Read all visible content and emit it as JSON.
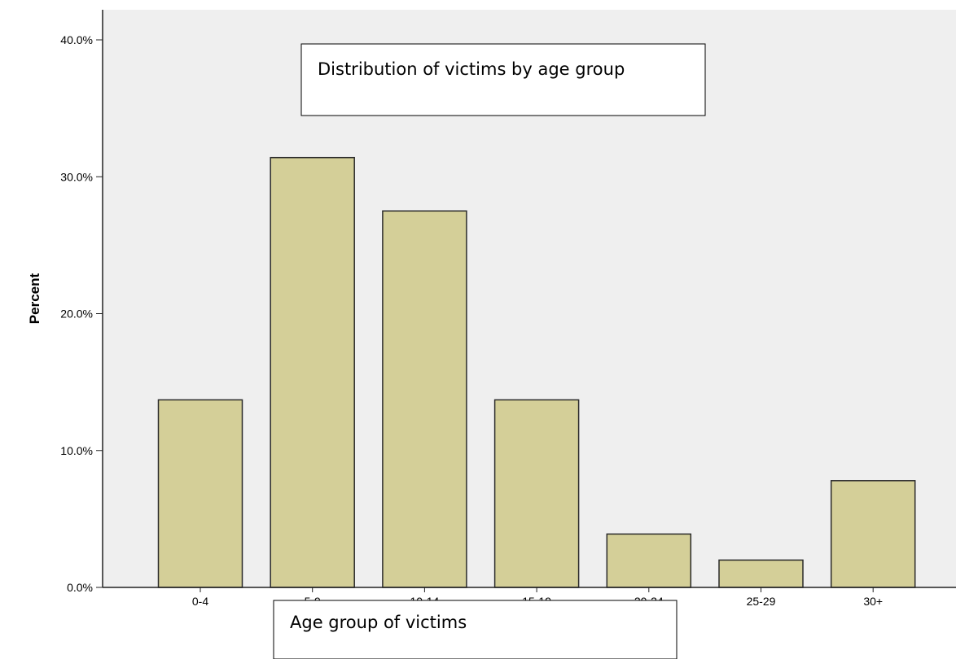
{
  "chart_data": {
    "type": "bar",
    "title": "Distribution of victims by age group",
    "xlabel": "Age group of victims",
    "ylabel": "Percent",
    "categories": [
      "0-4",
      "5-9",
      "10-14",
      "15-19",
      "20-24",
      "25-29",
      "30+"
    ],
    "values": [
      13.7,
      31.4,
      27.5,
      13.7,
      3.9,
      2.0,
      7.8
    ],
    "ylim": [
      0,
      40
    ],
    "yticks": [
      "0.0%",
      "10.0%",
      "20.0%",
      "30.0%",
      "40.0%"
    ],
    "grid": false,
    "legend": "none",
    "colors": {
      "bar_fill": "#d4cf98",
      "bar_stroke": "#2b2b2b",
      "plot_background": "#efefef"
    }
  }
}
